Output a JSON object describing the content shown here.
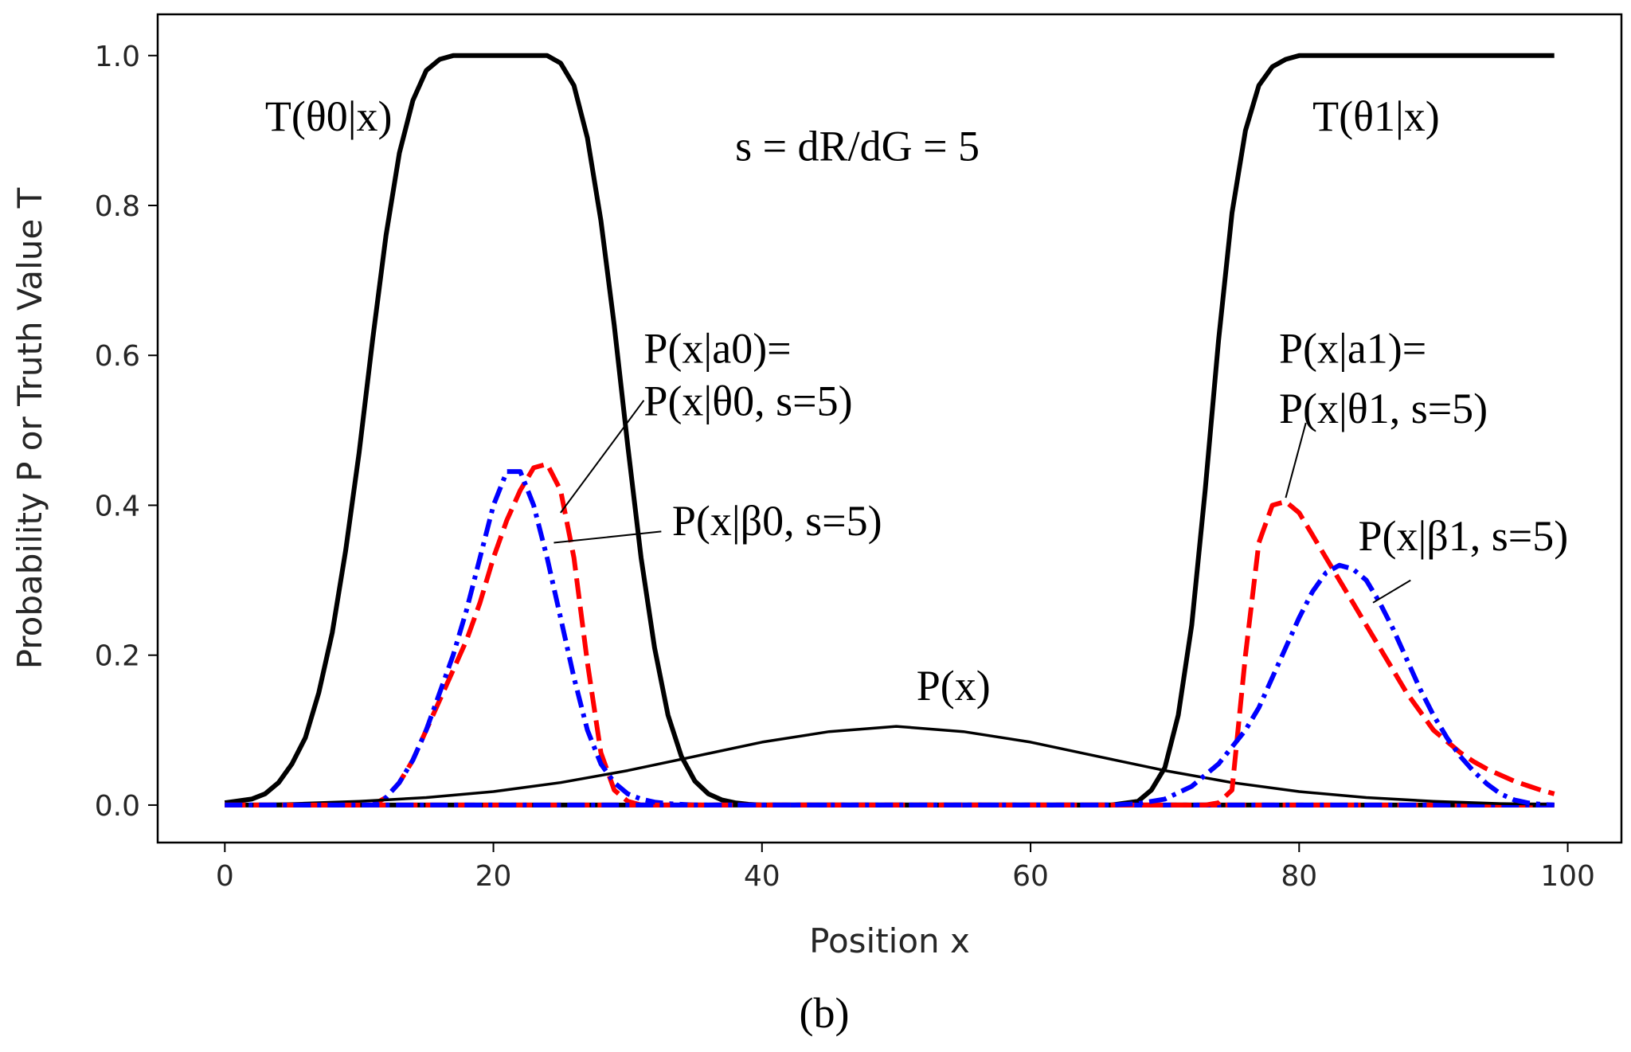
{
  "chart_data": {
    "type": "line",
    "title": "",
    "xlabel": "Position x",
    "ylabel": "Probability P or Truth Value T",
    "xlim": [
      -5,
      104
    ],
    "ylim": [
      -0.05,
      1.055
    ],
    "xticks": [
      0,
      20,
      40,
      60,
      80,
      100
    ],
    "yticks": [
      0.0,
      0.2,
      0.4,
      0.6,
      0.8,
      1.0
    ],
    "xtick_labels": [
      "0",
      "20",
      "40",
      "60",
      "80",
      "100"
    ],
    "ytick_labels": [
      "0.0",
      "0.2",
      "0.4",
      "0.6",
      "0.8",
      "1.0"
    ],
    "caption": "(b)",
    "parameter_note": "s = dR/dG = 5",
    "series": [
      {
        "name": "T(θ0|x)",
        "color": "#000000",
        "style": "solid",
        "width": "thick",
        "x": [
          0,
          2,
          3,
          4,
          5,
          6,
          7,
          8,
          9,
          10,
          11,
          12,
          13,
          14,
          15,
          16,
          17,
          18,
          19,
          20,
          21,
          22,
          23,
          24,
          25,
          26,
          27,
          28,
          29,
          30,
          31,
          32,
          33,
          34,
          35,
          36,
          37,
          38,
          39,
          40,
          99
        ],
        "y": [
          0.003,
          0.008,
          0.015,
          0.03,
          0.055,
          0.09,
          0.15,
          0.23,
          0.34,
          0.47,
          0.62,
          0.76,
          0.87,
          0.94,
          0.98,
          0.995,
          1.0,
          1.0,
          1.0,
          1.0,
          1.0,
          1.0,
          1.0,
          1.0,
          0.99,
          0.96,
          0.89,
          0.78,
          0.64,
          0.48,
          0.33,
          0.21,
          0.12,
          0.065,
          0.032,
          0.015,
          0.007,
          0.003,
          0.001,
          0.0,
          0.0
        ]
      },
      {
        "name": "T(θ1|x)",
        "color": "#000000",
        "style": "solid",
        "width": "thick",
        "x": [
          0,
          66,
          68,
          69,
          70,
          71,
          72,
          73,
          74,
          75,
          76,
          77,
          78,
          79,
          80,
          82,
          85,
          99
        ],
        "y": [
          0.0,
          0.0,
          0.005,
          0.02,
          0.05,
          0.12,
          0.24,
          0.42,
          0.62,
          0.79,
          0.9,
          0.96,
          0.985,
          0.995,
          1.0,
          1.0,
          1.0,
          1.0
        ]
      },
      {
        "name": "P(x|a0)=P(x|θ0, s=5)",
        "color": "#ff0000",
        "style": "dashed",
        "width": "thick",
        "x": [
          0,
          11,
          12,
          13,
          14,
          15,
          16,
          17,
          18,
          19,
          20,
          21,
          22,
          23,
          24,
          25,
          26,
          27,
          28,
          29,
          30,
          31,
          99
        ],
        "y": [
          0.0,
          0.0,
          0.01,
          0.03,
          0.06,
          0.1,
          0.14,
          0.18,
          0.22,
          0.27,
          0.33,
          0.38,
          0.42,
          0.45,
          0.455,
          0.42,
          0.33,
          0.19,
          0.07,
          0.02,
          0.005,
          0.0,
          0.0
        ]
      },
      {
        "name": "P(x|β0, s=5)",
        "color": "#0000ff",
        "style": "dashdot",
        "width": "thick",
        "x": [
          0,
          11,
          12,
          13,
          14,
          15,
          16,
          17,
          18,
          19,
          20,
          21,
          22,
          23,
          24,
          25,
          26,
          27,
          28,
          29,
          30,
          31,
          32,
          33,
          35,
          99
        ],
        "y": [
          0.0,
          0.0,
          0.01,
          0.03,
          0.06,
          0.1,
          0.15,
          0.2,
          0.26,
          0.33,
          0.4,
          0.445,
          0.445,
          0.4,
          0.33,
          0.25,
          0.17,
          0.1,
          0.055,
          0.03,
          0.015,
          0.008,
          0.004,
          0.002,
          0.0,
          0.0
        ]
      },
      {
        "name": "P(x)",
        "color": "#000000",
        "style": "solid",
        "width": "thin",
        "x": [
          0,
          5,
          10,
          15,
          20,
          25,
          30,
          35,
          40,
          45,
          50,
          55,
          60,
          65,
          70,
          75,
          80,
          85,
          90,
          95,
          99
        ],
        "y": [
          0.0,
          0.002,
          0.005,
          0.01,
          0.018,
          0.03,
          0.046,
          0.065,
          0.084,
          0.098,
          0.105,
          0.098,
          0.084,
          0.065,
          0.046,
          0.03,
          0.018,
          0.01,
          0.005,
          0.002,
          0.001
        ]
      },
      {
        "name": "P(x|a1)=P(x|θ1, s=5)",
        "color": "#ff0000",
        "style": "dashed",
        "width": "thick",
        "x": [
          0,
          73,
          74,
          75,
          76,
          77,
          78,
          79,
          80,
          81,
          82,
          83,
          84,
          85,
          86,
          87,
          88,
          89,
          90,
          91,
          92,
          93,
          94,
          95,
          96,
          97,
          98,
          99
        ],
        "y": [
          0.0,
          0.0,
          0.003,
          0.02,
          0.2,
          0.35,
          0.4,
          0.405,
          0.39,
          0.36,
          0.33,
          0.3,
          0.27,
          0.24,
          0.21,
          0.18,
          0.15,
          0.125,
          0.1,
          0.085,
          0.07,
          0.058,
          0.048,
          0.04,
          0.032,
          0.026,
          0.02,
          0.015
        ]
      },
      {
        "name": "P(x|β1, s=5)",
        "color": "#0000ff",
        "style": "dashdot",
        "width": "thick",
        "x": [
          0,
          66,
          68,
          70,
          72,
          74,
          76,
          77,
          78,
          79,
          80,
          81,
          82,
          83,
          84,
          85,
          86,
          87,
          88,
          89,
          90,
          91,
          92,
          93,
          94,
          95,
          96,
          97,
          98,
          99
        ],
        "y": [
          0.0,
          0.0,
          0.002,
          0.008,
          0.025,
          0.055,
          0.1,
          0.13,
          0.17,
          0.21,
          0.25,
          0.285,
          0.31,
          0.32,
          0.315,
          0.3,
          0.27,
          0.235,
          0.195,
          0.155,
          0.12,
          0.09,
          0.065,
          0.045,
          0.028,
          0.015,
          0.007,
          0.003,
          0.001,
          0.0
        ]
      }
    ],
    "annotations": [
      {
        "text": "T(θ0|x)",
        "x": 3,
        "y": 0.9
      },
      {
        "text": "T(θ1|x)",
        "x": 81,
        "y": 0.9
      },
      {
        "text": "s = dR/dG = 5",
        "x": 38,
        "y": 0.86
      },
      {
        "text": "P(x|a0)=",
        "x": 31.2,
        "y": 0.59
      },
      {
        "text": "P(x|θ0, s=5)",
        "x": 31.2,
        "y": 0.52
      },
      {
        "text": "P(x|β0, s=5)",
        "x": 33.3,
        "y": 0.36
      },
      {
        "text": "P(x|a1)=",
        "x": 78.5,
        "y": 0.59
      },
      {
        "text": "P(x|θ1, s=5)",
        "x": 78.5,
        "y": 0.51
      },
      {
        "text": "P(x|β1, s=5)",
        "x": 84.4,
        "y": 0.34
      },
      {
        "text": "P(x)",
        "x": 51.5,
        "y": 0.14
      }
    ],
    "leader_lines": [
      {
        "from": [
          31.2,
          0.54
        ],
        "to": [
          25,
          0.39
        ]
      },
      {
        "from": [
          32.5,
          0.365
        ],
        "to": [
          24.5,
          0.35
        ]
      },
      {
        "from": [
          80.5,
          0.51
        ],
        "to": [
          79,
          0.41
        ]
      },
      {
        "from": [
          88.3,
          0.3
        ],
        "to": [
          85.5,
          0.27
        ]
      }
    ]
  }
}
